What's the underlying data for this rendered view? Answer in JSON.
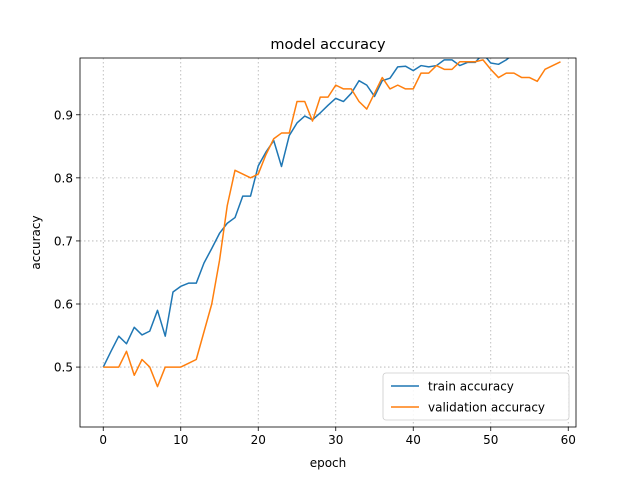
{
  "chart_data": {
    "type": "line",
    "title": "model accuracy",
    "xlabel": "epoch",
    "ylabel": "accuracy",
    "xlim": [
      -3,
      61
    ],
    "ylim": [
      0.405,
      0.99
    ],
    "xticks": [
      0,
      10,
      20,
      30,
      40,
      50,
      60
    ],
    "yticks": [
      0.5,
      0.6,
      0.7,
      0.8,
      0.9
    ],
    "grid": true,
    "legend_position": "bottom-right",
    "x": [
      0,
      1,
      2,
      3,
      4,
      5,
      6,
      7,
      8,
      9,
      10,
      11,
      12,
      13,
      14,
      15,
      16,
      17,
      18,
      19,
      20,
      21,
      22,
      23,
      24,
      25,
      26,
      27,
      28,
      29,
      30,
      31,
      32,
      33,
      34,
      35,
      36,
      37,
      38,
      39,
      40,
      41,
      42,
      43,
      44,
      45,
      46,
      47,
      48,
      49,
      50,
      51,
      52,
      53,
      54,
      55,
      56,
      57,
      58,
      59
    ],
    "series": [
      {
        "name": "train accuracy",
        "color": "#1f77b4",
        "values": [
          0.5,
          0.525,
          0.549,
          0.537,
          0.563,
          0.551,
          0.557,
          0.59,
          0.549,
          0.619,
          0.628,
          0.633,
          0.633,
          0.665,
          0.688,
          0.712,
          0.728,
          0.737,
          0.771,
          0.771,
          0.819,
          0.841,
          0.859,
          0.818,
          0.867,
          0.887,
          0.898,
          0.892,
          0.903,
          0.915,
          0.926,
          0.921,
          0.934,
          0.954,
          0.947,
          0.929,
          0.954,
          0.958,
          0.976,
          0.977,
          0.97,
          0.978,
          0.976,
          0.978,
          0.987,
          0.987,
          0.978,
          0.983,
          0.983,
          0.997,
          0.982,
          0.98,
          0.987,
          0.997,
          0.991,
          0.994,
          0.992,
          0.997,
          0.991,
          0.994
        ]
      },
      {
        "name": "validation accuracy",
        "color": "#ff7f0e",
        "values": [
          0.5,
          0.5,
          0.5,
          0.525,
          0.487,
          0.512,
          0.5,
          0.469,
          0.5,
          0.5,
          0.5,
          0.506,
          0.512,
          0.556,
          0.6,
          0.669,
          0.756,
          0.812,
          0.806,
          0.8,
          0.806,
          0.837,
          0.862,
          0.871,
          0.871,
          0.921,
          0.921,
          0.89,
          0.928,
          0.928,
          0.947,
          0.941,
          0.941,
          0.921,
          0.909,
          0.934,
          0.959,
          0.941,
          0.947,
          0.941,
          0.941,
          0.966,
          0.966,
          0.978,
          0.972,
          0.972,
          0.984,
          0.984,
          0.984,
          0.987,
          0.972,
          0.959,
          0.966,
          0.966,
          0.959,
          0.959,
          0.953,
          0.972,
          0.978,
          0.984
        ]
      }
    ]
  }
}
